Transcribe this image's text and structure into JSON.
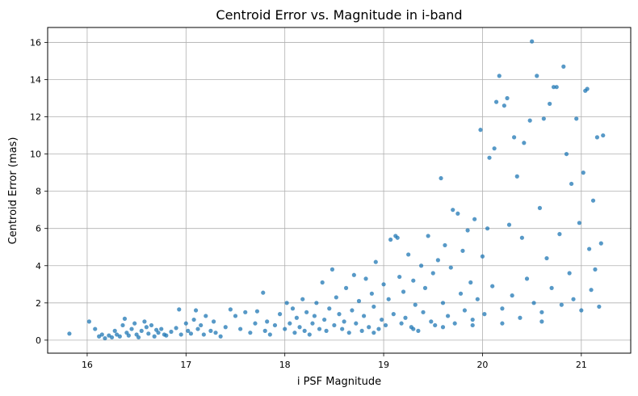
{
  "chart_data": {
    "type": "scatter",
    "title": "Centroid Error vs. Magnitude in i-band",
    "xlabel": "i PSF Magnitude",
    "ylabel": "Centroid Error (mas)",
    "xlim": [
      15.6,
      21.5
    ],
    "ylim": [
      -0.7,
      16.8
    ],
    "xticks": [
      16,
      17,
      18,
      19,
      20,
      21
    ],
    "yticks": [
      0,
      2,
      4,
      6,
      8,
      10,
      12,
      14,
      16
    ],
    "grid": true,
    "marker_color": "#1f77b4",
    "marker_alpha": 0.75,
    "points": [
      [
        15.82,
        0.35
      ],
      [
        16.02,
        1.0
      ],
      [
        16.08,
        0.6
      ],
      [
        16.12,
        0.2
      ],
      [
        16.15,
        0.3
      ],
      [
        16.18,
        0.1
      ],
      [
        16.22,
        0.25
      ],
      [
        16.25,
        0.15
      ],
      [
        16.28,
        0.5
      ],
      [
        16.3,
        0.3
      ],
      [
        16.33,
        0.2
      ],
      [
        16.36,
        0.8
      ],
      [
        16.38,
        1.15
      ],
      [
        16.4,
        0.4
      ],
      [
        16.42,
        0.25
      ],
      [
        16.45,
        0.6
      ],
      [
        16.48,
        0.9
      ],
      [
        16.5,
        0.3
      ],
      [
        16.52,
        0.15
      ],
      [
        16.55,
        0.5
      ],
      [
        16.58,
        1.0
      ],
      [
        16.6,
        0.7
      ],
      [
        16.62,
        0.35
      ],
      [
        16.65,
        0.8
      ],
      [
        16.68,
        0.2
      ],
      [
        16.7,
        0.55
      ],
      [
        16.72,
        0.4
      ],
      [
        16.75,
        0.6
      ],
      [
        16.78,
        0.3
      ],
      [
        16.8,
        0.25
      ],
      [
        16.85,
        0.45
      ],
      [
        16.9,
        0.65
      ],
      [
        16.93,
        1.65
      ],
      [
        16.95,
        0.3
      ],
      [
        17.0,
        0.9
      ],
      [
        17.02,
        0.5
      ],
      [
        17.05,
        0.35
      ],
      [
        17.08,
        1.1
      ],
      [
        17.1,
        1.6
      ],
      [
        17.12,
        0.6
      ],
      [
        17.15,
        0.8
      ],
      [
        17.18,
        0.3
      ],
      [
        17.2,
        1.3
      ],
      [
        17.25,
        0.5
      ],
      [
        17.28,
        1.0
      ],
      [
        17.3,
        0.4
      ],
      [
        17.35,
        0.2
      ],
      [
        17.4,
        0.7
      ],
      [
        17.45,
        1.65
      ],
      [
        17.5,
        1.3
      ],
      [
        17.55,
        0.6
      ],
      [
        17.6,
        1.5
      ],
      [
        17.65,
        0.4
      ],
      [
        17.7,
        0.9
      ],
      [
        17.72,
        1.55
      ],
      [
        17.78,
        2.55
      ],
      [
        17.8,
        0.5
      ],
      [
        17.82,
        1.0
      ],
      [
        17.85,
        0.3
      ],
      [
        17.9,
        0.8
      ],
      [
        17.95,
        1.4
      ],
      [
        18.0,
        0.6
      ],
      [
        18.02,
        2.0
      ],
      [
        18.05,
        0.9
      ],
      [
        18.08,
        1.7
      ],
      [
        18.1,
        0.4
      ],
      [
        18.12,
        1.2
      ],
      [
        18.15,
        0.7
      ],
      [
        18.18,
        2.2
      ],
      [
        18.2,
        0.5
      ],
      [
        18.22,
        1.5
      ],
      [
        18.25,
        0.3
      ],
      [
        18.28,
        0.9
      ],
      [
        18.3,
        1.3
      ],
      [
        18.32,
        2.0
      ],
      [
        18.35,
        0.6
      ],
      [
        18.38,
        3.1
      ],
      [
        18.4,
        1.1
      ],
      [
        18.42,
        0.5
      ],
      [
        18.45,
        1.7
      ],
      [
        18.48,
        3.8
      ],
      [
        18.5,
        0.8
      ],
      [
        18.52,
        2.3
      ],
      [
        18.55,
        1.4
      ],
      [
        18.58,
        0.6
      ],
      [
        18.6,
        1.0
      ],
      [
        18.62,
        2.8
      ],
      [
        18.65,
        0.4
      ],
      [
        18.68,
        1.6
      ],
      [
        18.7,
        3.5
      ],
      [
        18.72,
        0.9
      ],
      [
        18.75,
        2.1
      ],
      [
        18.78,
        0.5
      ],
      [
        18.8,
        1.3
      ],
      [
        18.82,
        3.3
      ],
      [
        18.85,
        0.7
      ],
      [
        18.88,
        2.5
      ],
      [
        18.9,
        1.8
      ],
      [
        18.92,
        4.2
      ],
      [
        18.95,
        0.6
      ],
      [
        18.98,
        1.1
      ],
      [
        19.0,
        3.0
      ],
      [
        19.02,
        0.8
      ],
      [
        19.05,
        2.2
      ],
      [
        19.07,
        5.4
      ],
      [
        19.1,
        1.4
      ],
      [
        19.12,
        5.6
      ],
      [
        19.14,
        5.5
      ],
      [
        19.16,
        3.4
      ],
      [
        19.18,
        0.9
      ],
      [
        19.2,
        2.6
      ],
      [
        19.22,
        1.2
      ],
      [
        19.25,
        4.6
      ],
      [
        19.28,
        0.7
      ],
      [
        19.3,
        3.2
      ],
      [
        19.32,
        1.9
      ],
      [
        19.35,
        0.5
      ],
      [
        19.38,
        4.0
      ],
      [
        19.4,
        1.5
      ],
      [
        19.42,
        2.8
      ],
      [
        19.45,
        5.6
      ],
      [
        19.48,
        1.0
      ],
      [
        19.5,
        3.6
      ],
      [
        19.52,
        0.8
      ],
      [
        19.55,
        4.3
      ],
      [
        19.58,
        8.7
      ],
      [
        19.6,
        2.0
      ],
      [
        19.62,
        5.1
      ],
      [
        19.65,
        1.3
      ],
      [
        19.68,
        3.9
      ],
      [
        19.7,
        7.0
      ],
      [
        19.72,
        0.9
      ],
      [
        19.75,
        6.8
      ],
      [
        19.78,
        2.5
      ],
      [
        19.8,
        4.8
      ],
      [
        19.82,
        1.6
      ],
      [
        19.85,
        5.9
      ],
      [
        19.88,
        3.1
      ],
      [
        19.9,
        1.1
      ],
      [
        19.92,
        6.5
      ],
      [
        19.95,
        2.2
      ],
      [
        19.98,
        11.3
      ],
      [
        20.0,
        4.5
      ],
      [
        20.02,
        1.4
      ],
      [
        20.05,
        6.0
      ],
      [
        20.07,
        9.8
      ],
      [
        20.1,
        2.9
      ],
      [
        20.12,
        10.3
      ],
      [
        20.14,
        12.8
      ],
      [
        20.17,
        14.2
      ],
      [
        20.2,
        1.7
      ],
      [
        20.22,
        12.6
      ],
      [
        20.25,
        13.0
      ],
      [
        20.27,
        6.2
      ],
      [
        20.3,
        2.4
      ],
      [
        20.32,
        10.9
      ],
      [
        20.35,
        8.8
      ],
      [
        20.38,
        1.2
      ],
      [
        20.4,
        5.5
      ],
      [
        20.42,
        10.6
      ],
      [
        20.45,
        3.3
      ],
      [
        20.48,
        11.8
      ],
      [
        20.5,
        16.05
      ],
      [
        20.52,
        2.0
      ],
      [
        20.55,
        14.2
      ],
      [
        20.58,
        7.1
      ],
      [
        20.6,
        1.5
      ],
      [
        20.62,
        11.9
      ],
      [
        20.65,
        4.4
      ],
      [
        20.68,
        12.7
      ],
      [
        20.7,
        2.8
      ],
      [
        20.72,
        13.6
      ],
      [
        20.75,
        13.6
      ],
      [
        20.78,
        5.7
      ],
      [
        20.8,
        1.9
      ],
      [
        20.82,
        14.7
      ],
      [
        20.85,
        10.0
      ],
      [
        20.88,
        3.6
      ],
      [
        20.9,
        8.4
      ],
      [
        20.92,
        2.2
      ],
      [
        20.95,
        11.9
      ],
      [
        20.98,
        6.3
      ],
      [
        21.0,
        1.6
      ],
      [
        21.02,
        9.0
      ],
      [
        21.04,
        13.4
      ],
      [
        21.06,
        13.5
      ],
      [
        21.08,
        4.9
      ],
      [
        21.1,
        2.7
      ],
      [
        21.12,
        7.5
      ],
      [
        21.14,
        3.8
      ],
      [
        21.16,
        10.9
      ],
      [
        21.18,
        1.8
      ],
      [
        21.2,
        5.2
      ],
      [
        21.22,
        11.0
      ],
      [
        19.3,
        0.6
      ],
      [
        19.6,
        0.7
      ],
      [
        20.2,
        0.9
      ],
      [
        20.6,
        1.0
      ],
      [
        18.9,
        0.4
      ],
      [
        19.9,
        0.8
      ]
    ]
  }
}
